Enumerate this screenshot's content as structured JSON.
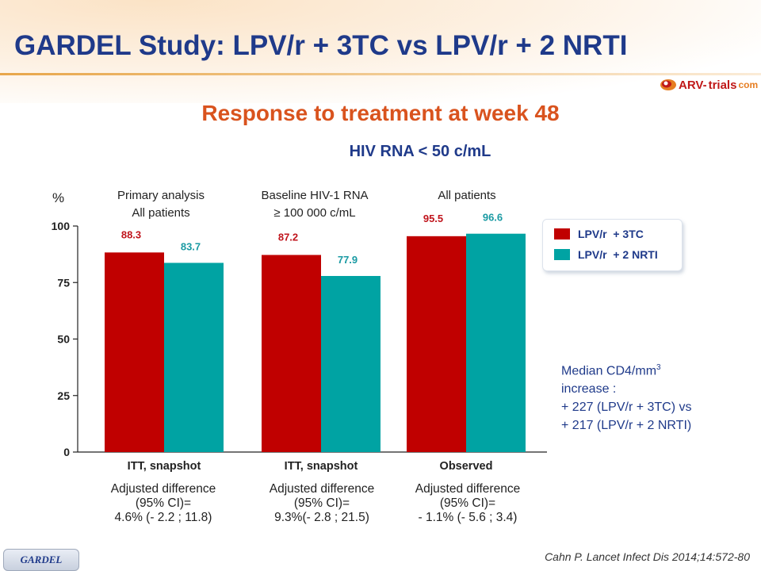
{
  "header": {
    "title": "GARDEL Study: LPV/r + 3TC vs LPV/r + 2 NRTI",
    "logo_arv": "ARV-",
    "logo_trials": "trials",
    "logo_com": "com"
  },
  "subtitle": "Response to treatment at week 48",
  "endpoint": "HIV RNA < 50 c/mL",
  "y_unit": "%",
  "groups": [
    {
      "condition_line1": "Primary analysis",
      "condition_line2": "All patients",
      "analysis": "ITT, snapshot",
      "adj_line1": "Adjusted difference",
      "adj_line2": "(95% CI)=",
      "adj_line3": "4.6% (- 2.2 ; 11.8)"
    },
    {
      "condition_line1": "Baseline HIV-1 RNA",
      "condition_line2": "≥ 100 000 c/mL",
      "analysis": "ITT, snapshot",
      "adj_line1": "Adjusted difference",
      "adj_line2": "(95% CI)=",
      "adj_line3": "9.3%(- 2.8 ; 21.5)"
    },
    {
      "condition_line1": "All patients",
      "condition_line2": "",
      "analysis": "Observed",
      "adj_line1": "Adjusted difference",
      "adj_line2": "(95% CI)=",
      "adj_line3": "- 1.1% (- 5.6 ; 3.4)"
    }
  ],
  "legend": [
    {
      "label": "LPV/r  + 3TC",
      "color": "#c00000"
    },
    {
      "label": "LPV/r  + 2 NRTI",
      "color": "#00a3a3"
    }
  ],
  "cd4": {
    "line1_prefix": "Median CD4/mm",
    "line1_sup": "3",
    "line2": "increase :",
    "line3": "+ 227 (LPV/r + 3TC) vs",
    "line4": "+ 217 (LPV/r + 2 NRTI)"
  },
  "citation": "Cahn P. Lancet Infect Dis 2014;14:572-80",
  "badge": "GARDEL",
  "chart_data": {
    "type": "bar",
    "categories": [
      "ITT, snapshot",
      "ITT, snapshot",
      "Observed"
    ],
    "series": [
      {
        "name": "LPV/r  + 3TC",
        "values": [
          88.3,
          87.2,
          95.5
        ],
        "labels": [
          "88.3",
          "87.2",
          "95.5"
        ],
        "color": "#c00000",
        "label_color": "#c0141c"
      },
      {
        "name": "LPV/r  + 2 NRTI",
        "values": [
          83.7,
          77.9,
          96.6
        ],
        "labels": [
          "83.7",
          "77.9",
          "96.6"
        ],
        "color": "#00a3a3",
        "label_color": "#1a9aa3"
      }
    ],
    "yticks": [
      "0",
      "25",
      "50",
      "75",
      "100"
    ],
    "ytick_values": [
      0,
      25,
      50,
      75,
      100
    ],
    "ylim": [
      0,
      100
    ],
    "ylabel": "%",
    "grid": false,
    "legend_position": "right"
  }
}
